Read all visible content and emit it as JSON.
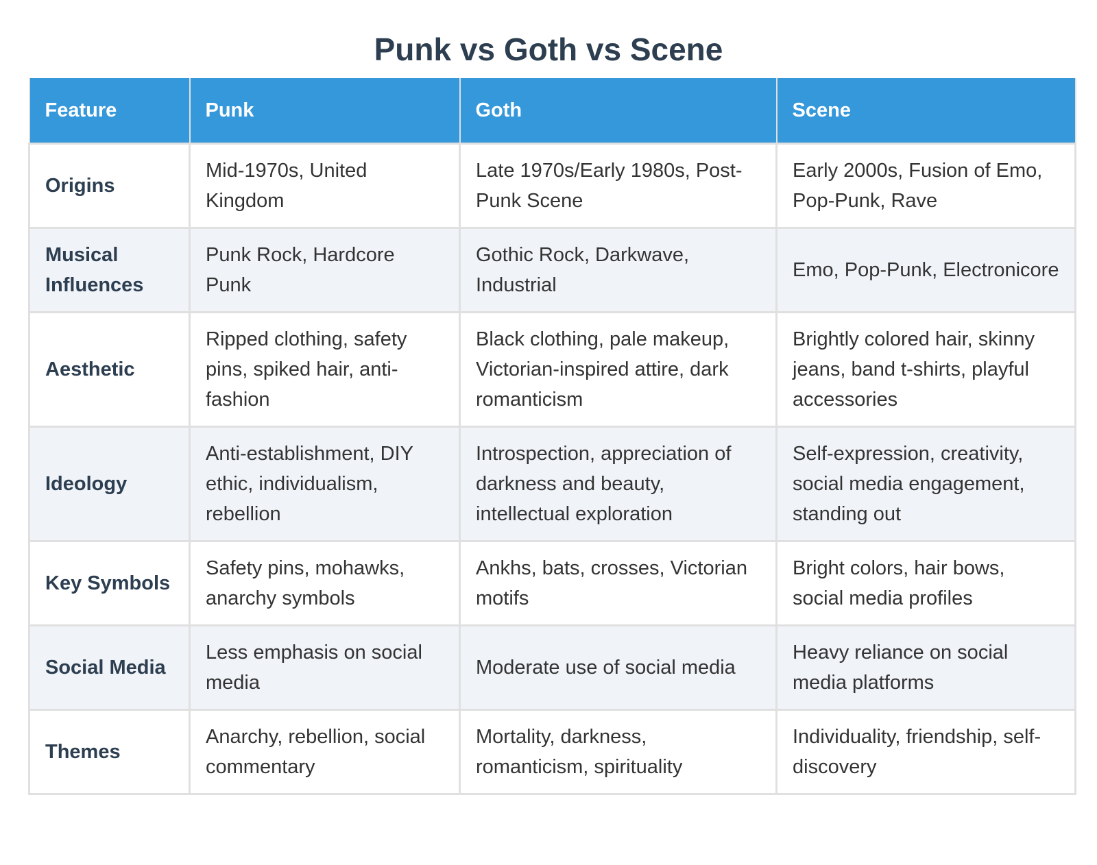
{
  "title": "Punk vs Goth vs Scene",
  "table": {
    "headers": [
      "Feature",
      "Punk",
      "Goth",
      "Scene"
    ],
    "rows": [
      {
        "feature": "Origins",
        "punk": "Mid-1970s, United Kingdom",
        "goth": "Late 1970s/Early 1980s, Post-Punk Scene",
        "scene": "Early 2000s, Fusion of Emo, Pop-Punk, Rave"
      },
      {
        "feature": "Musical Influences",
        "punk": "Punk Rock, Hardcore Punk",
        "goth": "Gothic Rock, Darkwave, Industrial",
        "scene": "Emo, Pop-Punk, Electronicore"
      },
      {
        "feature": "Aesthetic",
        "punk": "Ripped clothing, safety pins, spiked hair, anti-fashion",
        "goth": "Black clothing, pale makeup, Victorian-inspired attire, dark romanticism",
        "scene": "Brightly colored hair, skinny jeans, band t-shirts, playful accessories"
      },
      {
        "feature": "Ideology",
        "punk": "Anti-establishment, DIY ethic, individualism, rebellion",
        "goth": "Introspection, appreciation of darkness and beauty, intellectual exploration",
        "scene": "Self-expression, creativity, social media engagement, standing out"
      },
      {
        "feature": "Key Symbols",
        "punk": "Safety pins, mohawks, anarchy symbols",
        "goth": "Ankhs, bats, crosses, Victorian motifs",
        "scene": "Bright colors, hair bows, social media profiles"
      },
      {
        "feature": "Social Media",
        "punk": "Less emphasis on social media",
        "goth": "Moderate use of social media",
        "scene": "Heavy reliance on social media platforms"
      },
      {
        "feature": "Themes",
        "punk": "Anarchy, rebellion, social commentary",
        "goth": "Mortality, darkness, romanticism, spirituality",
        "scene": "Individuality, friendship, self-discovery"
      }
    ]
  },
  "colors": {
    "header_bg": "#3498db",
    "title": "#2c3e50",
    "stripe": "#f0f3f8",
    "border": "#e0e0e0"
  }
}
